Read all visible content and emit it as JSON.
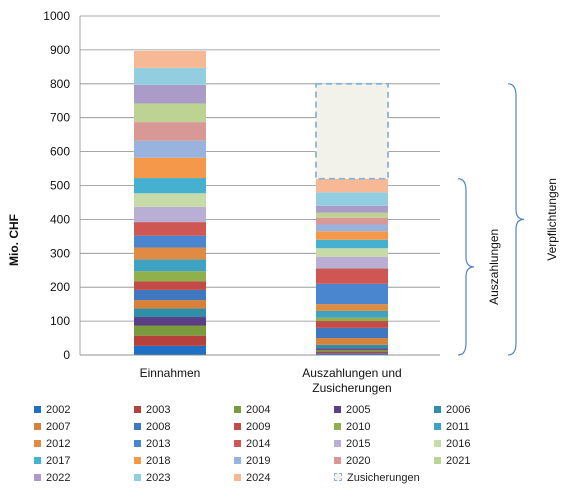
{
  "chart_data": {
    "type": "bar",
    "stacked": true,
    "ylabel": "Mio. CHF",
    "ylim": [
      0,
      1000
    ],
    "yticks": [
      0,
      100,
      200,
      300,
      400,
      500,
      600,
      700,
      800,
      900,
      1000
    ],
    "grid": true,
    "categories": [
      "Einnahmen",
      "Auszahlungen und\nZusicherungen"
    ],
    "category_lines": [
      [
        "Einnahmen"
      ],
      [
        "Auszahlungen und",
        "Zusicherungen"
      ]
    ],
    "series": [
      {
        "name": "2002",
        "color": "#1f6fc5",
        "values": [
          27,
          5
        ]
      },
      {
        "name": "2003",
        "color": "#b5403c",
        "values": [
          30,
          5
        ]
      },
      {
        "name": "2004",
        "color": "#7a9a3e",
        "values": [
          30,
          5
        ]
      },
      {
        "name": "2005",
        "color": "#5b3f86",
        "values": [
          25,
          5
        ]
      },
      {
        "name": "2006",
        "color": "#2f8ea8",
        "values": [
          25,
          10
        ]
      },
      {
        "name": "2007",
        "color": "#d7813a",
        "values": [
          25,
          20
        ]
      },
      {
        "name": "2008",
        "color": "#3f78c0",
        "values": [
          30,
          30
        ]
      },
      {
        "name": "2009",
        "color": "#c44a47",
        "values": [
          25,
          20
        ]
      },
      {
        "name": "2010",
        "color": "#8fb04a",
        "values": [
          30,
          10
        ]
      },
      {
        "name": "2011",
        "color": "#3ea2c0",
        "values": [
          35,
          20
        ]
      },
      {
        "name": "2012",
        "color": "#e08b43",
        "values": [
          35,
          20
        ]
      },
      {
        "name": "2013",
        "color": "#4a85cf",
        "values": [
          35,
          60
        ]
      },
      {
        "name": "2014",
        "color": "#cf5753",
        "values": [
          40,
          45
        ]
      },
      {
        "name": "2015",
        "color": "#b9aed4",
        "values": [
          45,
          35
        ]
      },
      {
        "name": "2016",
        "color": "#c7dba8",
        "values": [
          40,
          25
        ]
      },
      {
        "name": "2017",
        "color": "#45b0cf",
        "values": [
          45,
          25
        ]
      },
      {
        "name": "2018",
        "color": "#f5984a",
        "values": [
          60,
          25
        ]
      },
      {
        "name": "2019",
        "color": "#98b3dd",
        "values": [
          50,
          20
        ]
      },
      {
        "name": "2020",
        "color": "#d89895",
        "values": [
          55,
          20
        ]
      },
      {
        "name": "2021",
        "color": "#bdd394",
        "values": [
          55,
          15
        ]
      },
      {
        "name": "2022",
        "color": "#ab9bc8",
        "values": [
          55,
          20
        ]
      },
      {
        "name": "2023",
        "color": "#93cde0",
        "values": [
          50,
          40
        ]
      },
      {
        "name": "2024",
        "color": "#f7b896",
        "values": [
          50,
          40
        ]
      },
      {
        "name": "Zusicherungen",
        "color": "#f2f2ea",
        "values": [
          0,
          280
        ],
        "style": "dashed"
      }
    ],
    "annotations": [
      {
        "text": "Auszahlungen",
        "range": [
          0,
          520
        ]
      },
      {
        "text": "Verpflichtungen",
        "range": [
          0,
          800
        ]
      }
    ],
    "legend_position": "bottom"
  }
}
